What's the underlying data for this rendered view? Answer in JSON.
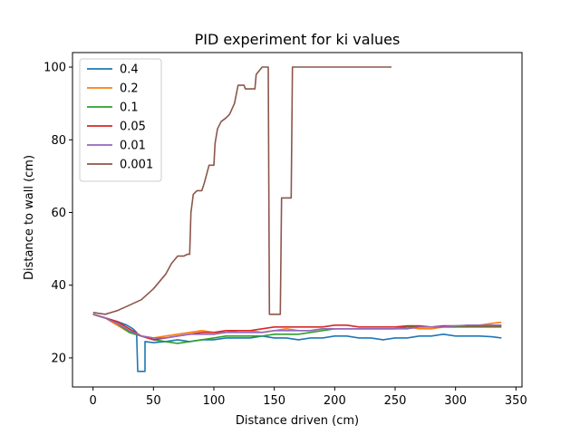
{
  "chart_data": {
    "type": "line",
    "title": "PID experiment for ki values",
    "xlabel": "Distance driven (cm)",
    "ylabel": "Distance to wall (cm)",
    "xlim": [
      -17,
      355
    ],
    "ylim": [
      12,
      104
    ],
    "xticks": [
      0,
      50,
      100,
      150,
      200,
      250,
      300,
      350
    ],
    "yticks": [
      20,
      40,
      60,
      80,
      100
    ],
    "grid": false,
    "legend_position": "top-left",
    "series": [
      {
        "name": "0.4",
        "color": "#1f77b4",
        "points": [
          [
            0,
            32
          ],
          [
            10,
            31
          ],
          [
            20,
            30
          ],
          [
            28,
            29
          ],
          [
            33,
            28
          ],
          [
            36,
            27
          ],
          [
            37,
            16.3
          ],
          [
            43,
            16.3
          ],
          [
            43,
            24.5
          ],
          [
            50,
            24.2
          ],
          [
            60,
            24.5
          ],
          [
            70,
            25
          ],
          [
            80,
            24.5
          ],
          [
            90,
            25
          ],
          [
            100,
            25
          ],
          [
            110,
            25.5
          ],
          [
            120,
            25.5
          ],
          [
            130,
            25.5
          ],
          [
            140,
            26
          ],
          [
            150,
            25.5
          ],
          [
            160,
            25.5
          ],
          [
            170,
            25
          ],
          [
            180,
            25.5
          ],
          [
            190,
            25.5
          ],
          [
            200,
            26
          ],
          [
            210,
            26
          ],
          [
            220,
            25.5
          ],
          [
            230,
            25.5
          ],
          [
            240,
            25
          ],
          [
            250,
            25.5
          ],
          [
            260,
            25.5
          ],
          [
            270,
            26
          ],
          [
            280,
            26
          ],
          [
            290,
            26.5
          ],
          [
            300,
            26
          ],
          [
            310,
            26
          ],
          [
            320,
            26
          ],
          [
            330,
            25.8
          ],
          [
            338,
            25.5
          ]
        ]
      },
      {
        "name": "0.2",
        "color": "#ff7f0e",
        "points": [
          [
            0,
            32
          ],
          [
            10,
            31
          ],
          [
            20,
            29
          ],
          [
            30,
            27
          ],
          [
            40,
            26
          ],
          [
            50,
            25.5
          ],
          [
            60,
            26
          ],
          [
            70,
            26.5
          ],
          [
            80,
            27
          ],
          [
            90,
            27.5
          ],
          [
            100,
            27
          ],
          [
            110,
            27
          ],
          [
            120,
            27.5
          ],
          [
            130,
            27.5
          ],
          [
            140,
            27
          ],
          [
            150,
            27.5
          ],
          [
            160,
            28
          ],
          [
            170,
            27.5
          ],
          [
            180,
            27.5
          ],
          [
            190,
            28
          ],
          [
            200,
            28
          ],
          [
            210,
            28
          ],
          [
            220,
            28
          ],
          [
            230,
            28
          ],
          [
            240,
            28
          ],
          [
            250,
            28
          ],
          [
            260,
            28.5
          ],
          [
            270,
            28
          ],
          [
            280,
            28
          ],
          [
            290,
            28.5
          ],
          [
            300,
            28.5
          ],
          [
            310,
            29
          ],
          [
            320,
            29
          ],
          [
            330,
            29.5
          ],
          [
            338,
            29.8
          ]
        ]
      },
      {
        "name": "0.1",
        "color": "#2ca02c",
        "points": [
          [
            0,
            32
          ],
          [
            10,
            31
          ],
          [
            20,
            29.5
          ],
          [
            30,
            27
          ],
          [
            40,
            26
          ],
          [
            50,
            25
          ],
          [
            60,
            24.5
          ],
          [
            70,
            24
          ],
          [
            80,
            24.5
          ],
          [
            90,
            25
          ],
          [
            100,
            25.5
          ],
          [
            110,
            26
          ],
          [
            120,
            26
          ],
          [
            130,
            26
          ],
          [
            140,
            26
          ],
          [
            150,
            26.5
          ],
          [
            160,
            26.5
          ],
          [
            170,
            26.5
          ],
          [
            180,
            27
          ],
          [
            190,
            27.5
          ],
          [
            200,
            28
          ],
          [
            210,
            28
          ],
          [
            220,
            28
          ],
          [
            230,
            28
          ],
          [
            240,
            28
          ],
          [
            250,
            28
          ],
          [
            260,
            28.5
          ],
          [
            270,
            28.5
          ],
          [
            280,
            28.5
          ],
          [
            290,
            28.5
          ],
          [
            300,
            28.5
          ],
          [
            310,
            28.5
          ],
          [
            320,
            28.5
          ],
          [
            330,
            28.5
          ],
          [
            338,
            28.5
          ]
        ]
      },
      {
        "name": "0.05",
        "color": "#d62728",
        "points": [
          [
            0,
            32
          ],
          [
            10,
            31
          ],
          [
            20,
            30
          ],
          [
            30,
            28
          ],
          [
            40,
            26
          ],
          [
            50,
            25
          ],
          [
            60,
            25.5
          ],
          [
            70,
            26
          ],
          [
            80,
            26.5
          ],
          [
            90,
            27
          ],
          [
            100,
            27
          ],
          [
            110,
            27.5
          ],
          [
            120,
            27.5
          ],
          [
            130,
            27.5
          ],
          [
            140,
            28
          ],
          [
            150,
            28.5
          ],
          [
            160,
            28.5
          ],
          [
            170,
            28.5
          ],
          [
            180,
            28.5
          ],
          [
            190,
            28.5
          ],
          [
            200,
            29
          ],
          [
            210,
            29
          ],
          [
            220,
            28.5
          ],
          [
            230,
            28.5
          ],
          [
            240,
            28.5
          ],
          [
            250,
            28.5
          ],
          [
            260,
            28.8
          ],
          [
            270,
            28.8
          ],
          [
            280,
            28.5
          ],
          [
            290,
            28.8
          ],
          [
            300,
            28.8
          ],
          [
            310,
            28.8
          ],
          [
            320,
            28.8
          ],
          [
            330,
            28.8
          ],
          [
            338,
            28.8
          ]
        ]
      },
      {
        "name": "0.01",
        "color": "#9467bd",
        "points": [
          [
            0,
            32
          ],
          [
            10,
            31
          ],
          [
            20,
            29.5
          ],
          [
            30,
            27.5
          ],
          [
            40,
            26
          ],
          [
            50,
            25.5
          ],
          [
            60,
            25.5
          ],
          [
            70,
            26
          ],
          [
            80,
            26.5
          ],
          [
            90,
            26.5
          ],
          [
            100,
            26.5
          ],
          [
            110,
            27
          ],
          [
            120,
            27
          ],
          [
            130,
            27
          ],
          [
            140,
            27
          ],
          [
            150,
            27.5
          ],
          [
            160,
            27.5
          ],
          [
            170,
            27.5
          ],
          [
            180,
            27.5
          ],
          [
            190,
            28
          ],
          [
            200,
            28
          ],
          [
            210,
            28
          ],
          [
            220,
            28
          ],
          [
            230,
            28
          ],
          [
            240,
            28
          ],
          [
            250,
            28
          ],
          [
            260,
            28
          ],
          [
            270,
            28.5
          ],
          [
            280,
            28.5
          ],
          [
            290,
            28.5
          ],
          [
            300,
            28.8
          ],
          [
            310,
            29
          ],
          [
            320,
            29
          ],
          [
            330,
            29
          ],
          [
            338,
            29
          ]
        ]
      },
      {
        "name": "0.001",
        "color": "#8c564b",
        "points": [
          [
            0,
            32.5
          ],
          [
            10,
            32
          ],
          [
            20,
            33
          ],
          [
            30,
            34.5
          ],
          [
            40,
            36
          ],
          [
            50,
            39
          ],
          [
            60,
            43
          ],
          [
            65,
            46
          ],
          [
            70,
            48
          ],
          [
            75,
            48
          ],
          [
            78,
            48.5
          ],
          [
            80,
            48.5
          ],
          [
            81,
            60
          ],
          [
            83,
            65
          ],
          [
            86,
            66
          ],
          [
            90,
            66
          ],
          [
            92,
            68
          ],
          [
            96,
            73
          ],
          [
            100,
            73
          ],
          [
            101,
            79
          ],
          [
            103,
            83
          ],
          [
            106,
            85
          ],
          [
            110,
            86
          ],
          [
            113,
            87
          ],
          [
            117,
            90
          ],
          [
            120,
            95
          ],
          [
            125,
            95
          ],
          [
            126,
            94
          ],
          [
            134,
            94
          ],
          [
            135,
            98
          ],
          [
            140,
            100
          ],
          [
            145,
            100
          ],
          [
            146,
            32
          ],
          [
            155,
            32
          ],
          [
            156,
            64
          ],
          [
            164,
            64
          ],
          [
            165,
            100
          ],
          [
            247,
            100
          ]
        ]
      }
    ]
  }
}
